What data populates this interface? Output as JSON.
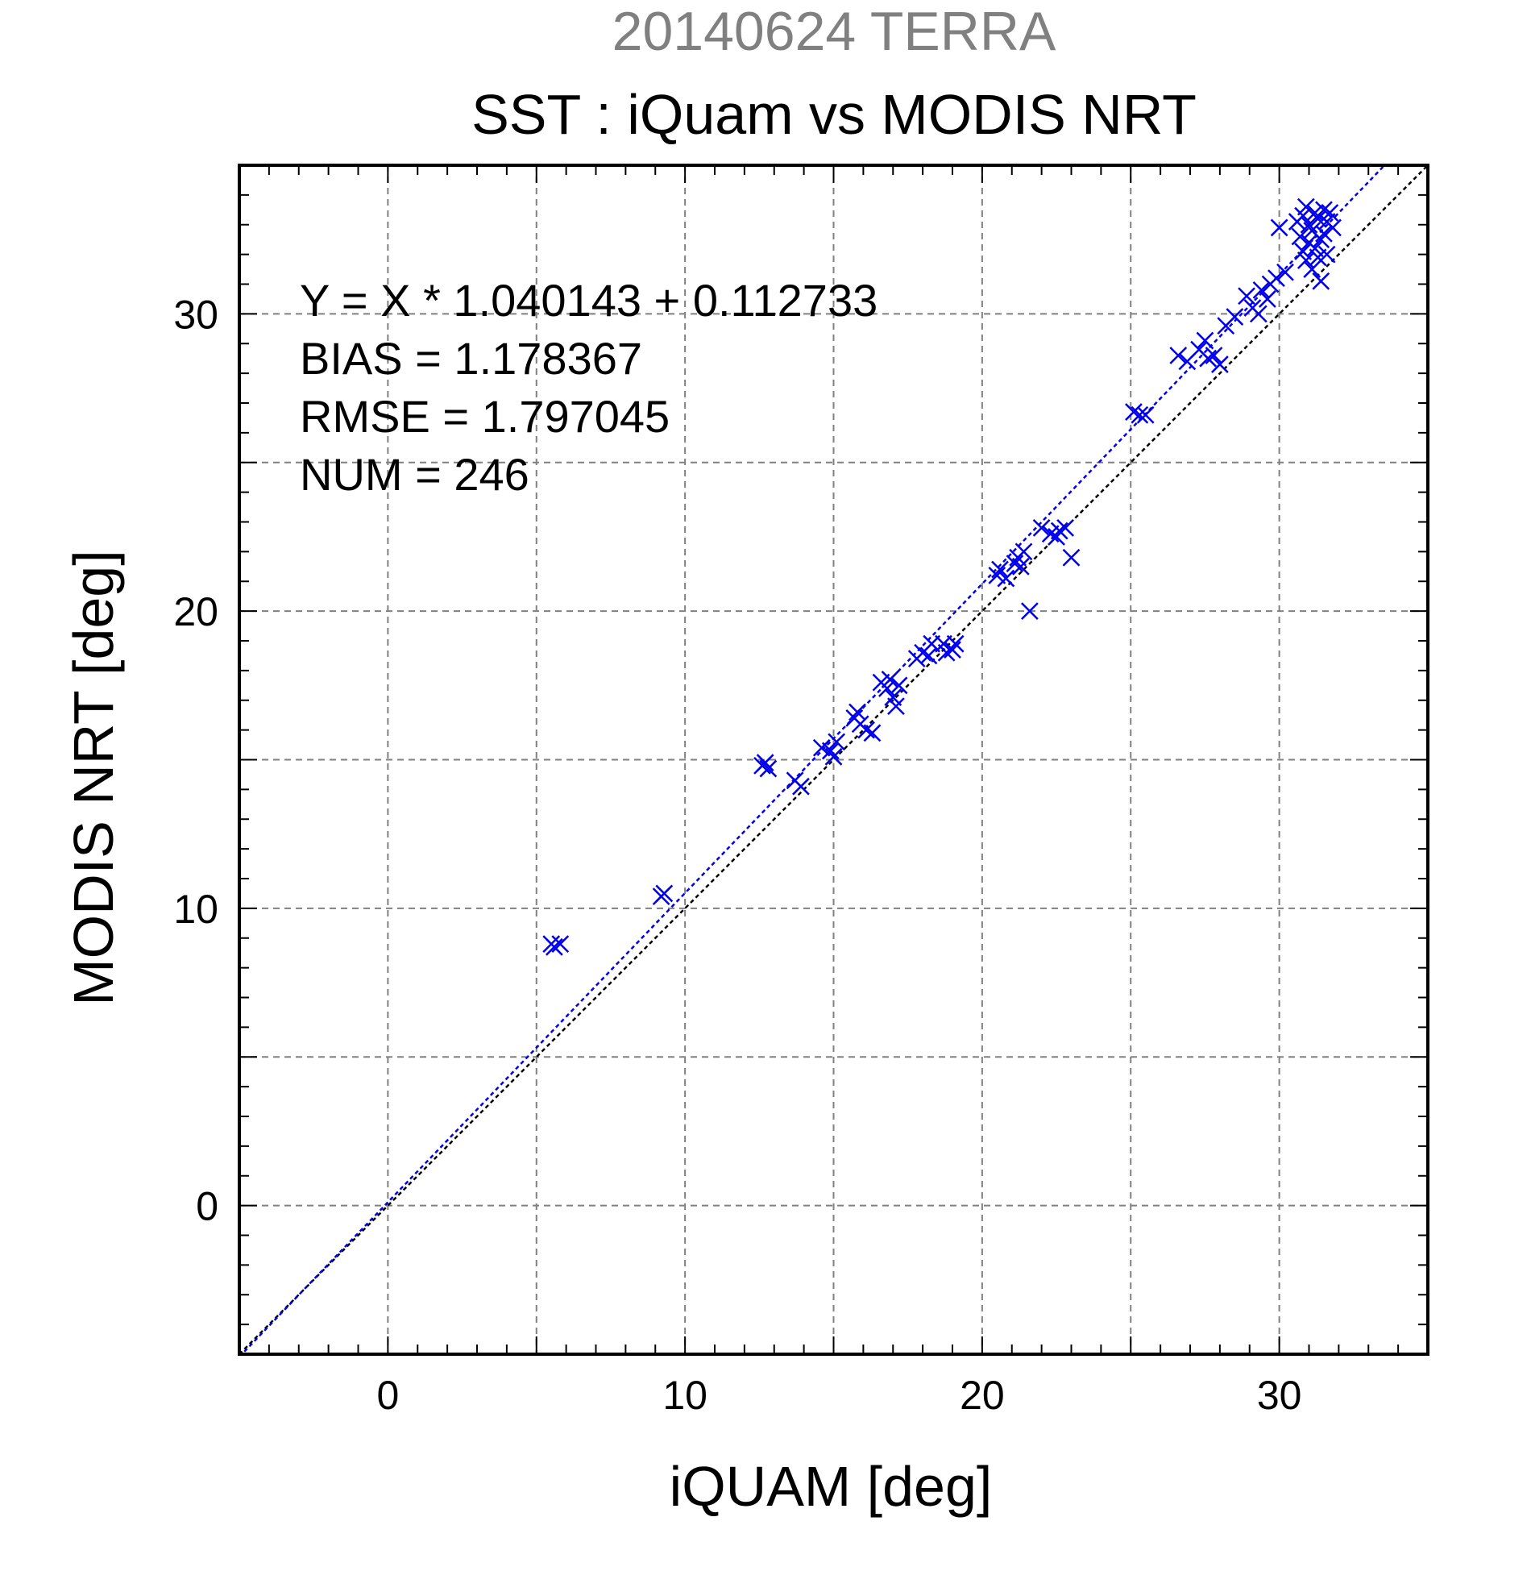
{
  "chart_data": {
    "type": "scatter",
    "title": "20140624 TERRA",
    "subtitle": "SST : iQuam vs MODIS NRT",
    "xlabel": "iQUAM [deg]",
    "ylabel": "MODIS NRT [deg]",
    "xlim": [
      -5,
      35
    ],
    "ylim": [
      -5,
      35
    ],
    "xticks": [
      0,
      10,
      20,
      30
    ],
    "yticks": [
      0,
      10,
      20,
      30
    ],
    "grid_step": 5,
    "minor_step": 1,
    "grid": true,
    "colors": {
      "points": "#0000ee",
      "fit_line": "#0000ee",
      "identity_line": "#000000",
      "title": "#808080"
    },
    "annotations": [
      "Y = X * 1.040143 + 0.112733",
      "BIAS = 1.178367",
      "RMSE = 1.797045",
      "NUM = 246"
    ],
    "fit": {
      "slope": 1.040143,
      "intercept": 0.112733
    },
    "series": [
      {
        "marker": "x",
        "points": [
          [
            5.5,
            8.8
          ],
          [
            5.6,
            8.7
          ],
          [
            5.8,
            8.8
          ],
          [
            9.2,
            10.4
          ],
          [
            9.3,
            10.5
          ],
          [
            12.6,
            14.8
          ],
          [
            12.8,
            14.7
          ],
          [
            12.7,
            14.9
          ],
          [
            13.7,
            14.3
          ],
          [
            13.9,
            14.1
          ],
          [
            14.6,
            15.4
          ],
          [
            14.9,
            15.3
          ],
          [
            15.0,
            15.1
          ],
          [
            15.1,
            15.6
          ],
          [
            15.7,
            16.4
          ],
          [
            15.8,
            16.6
          ],
          [
            15.9,
            16.2
          ],
          [
            16.1,
            16.0
          ],
          [
            16.3,
            15.9
          ],
          [
            16.6,
            17.6
          ],
          [
            16.8,
            17.4
          ],
          [
            17.0,
            17.1
          ],
          [
            16.9,
            17.7
          ],
          [
            17.1,
            16.8
          ],
          [
            17.2,
            17.5
          ],
          [
            17.8,
            18.4
          ],
          [
            18.0,
            18.6
          ],
          [
            18.2,
            18.5
          ],
          [
            18.3,
            18.9
          ],
          [
            18.7,
            18.9
          ],
          [
            18.8,
            18.6
          ],
          [
            19.0,
            18.7
          ],
          [
            19.1,
            18.9
          ],
          [
            20.5,
            21.2
          ],
          [
            20.6,
            21.4
          ],
          [
            20.8,
            21.1
          ],
          [
            21.1,
            21.6
          ],
          [
            21.2,
            21.8
          ],
          [
            21.3,
            21.5
          ],
          [
            21.4,
            22.0
          ],
          [
            21.6,
            20.0
          ],
          [
            22.0,
            22.8
          ],
          [
            22.3,
            22.6
          ],
          [
            22.5,
            22.5
          ],
          [
            22.6,
            22.7
          ],
          [
            22.8,
            22.8
          ],
          [
            23.0,
            21.8
          ],
          [
            25.1,
            26.7
          ],
          [
            25.3,
            26.6
          ],
          [
            25.5,
            26.6
          ],
          [
            26.6,
            28.6
          ],
          [
            26.9,
            28.4
          ],
          [
            27.3,
            28.8
          ],
          [
            27.5,
            29.1
          ],
          [
            27.6,
            28.5
          ],
          [
            27.8,
            28.6
          ],
          [
            28.0,
            28.3
          ],
          [
            28.2,
            29.6
          ],
          [
            28.5,
            29.9
          ],
          [
            28.9,
            30.6
          ],
          [
            29.1,
            30.2
          ],
          [
            29.3,
            30.0
          ],
          [
            29.4,
            30.8
          ],
          [
            29.6,
            30.5
          ],
          [
            29.7,
            31.0
          ],
          [
            29.9,
            31.2
          ],
          [
            30.0,
            32.9
          ],
          [
            30.2,
            31.4
          ],
          [
            30.6,
            33.1
          ],
          [
            30.7,
            32.6
          ],
          [
            30.8,
            33.3
          ],
          [
            30.8,
            32.1
          ],
          [
            30.9,
            31.8
          ],
          [
            30.9,
            33.6
          ],
          [
            31.0,
            32.4
          ],
          [
            31.0,
            33.0
          ],
          [
            31.1,
            31.5
          ],
          [
            31.1,
            32.8
          ],
          [
            31.2,
            33.4
          ],
          [
            31.2,
            32.2
          ],
          [
            31.3,
            31.9
          ],
          [
            31.3,
            33.2
          ],
          [
            31.4,
            32.5
          ],
          [
            31.4,
            31.1
          ],
          [
            31.5,
            33.5
          ],
          [
            31.5,
            32.7
          ],
          [
            31.6,
            33.1
          ],
          [
            31.6,
            32.0
          ],
          [
            31.7,
            33.4
          ],
          [
            31.8,
            32.9
          ]
        ]
      }
    ]
  }
}
